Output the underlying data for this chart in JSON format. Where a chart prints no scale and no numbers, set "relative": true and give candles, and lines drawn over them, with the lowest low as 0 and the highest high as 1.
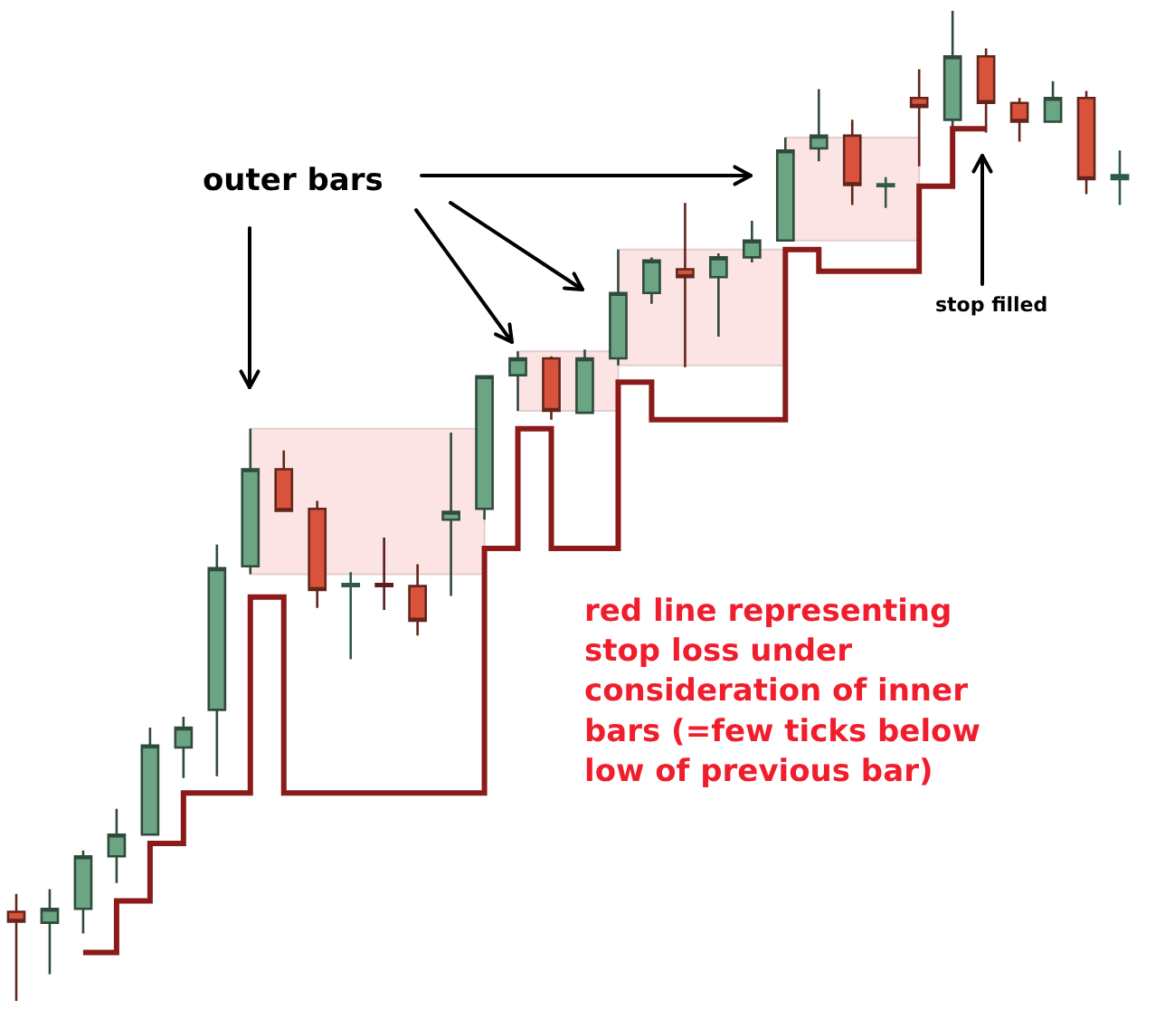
{
  "chart_data": {
    "type": "candlestick",
    "relative": true,
    "categories": [
      null,
      null,
      null,
      null,
      null,
      null,
      null,
      null,
      null,
      null,
      null,
      null,
      null,
      null,
      null,
      null,
      null,
      null,
      null,
      null,
      null,
      null,
      null,
      null,
      null,
      null,
      null,
      null,
      null,
      null,
      null,
      null,
      null,
      null
    ],
    "ohlc": [
      [
        0.09,
        0.108,
        0,
        0.08
      ],
      [
        0.079,
        0.113,
        0.027,
        0.093
      ],
      [
        0.093,
        0.152,
        0.068,
        0.146
      ],
      [
        0.146,
        0.194,
        0.119,
        0.168
      ],
      [
        0.168,
        0.276,
        0.168,
        0.258
      ],
      [
        0.256,
        0.287,
        0.225,
        0.276
      ],
      [
        0.294,
        0.461,
        0.227,
        0.437
      ],
      [
        0.439,
        0.578,
        0.431,
        0.537
      ],
      [
        0.537,
        0.556,
        0.494,
        0.495
      ],
      [
        0.497,
        0.505,
        0.397,
        0.415
      ],
      [
        0.419,
        0.433,
        0.345,
        0.421
      ],
      [
        0.421,
        0.468,
        0.395,
        0.419
      ],
      [
        0.419,
        0.441,
        0.369,
        0.384
      ],
      [
        0.486,
        0.574,
        0.409,
        0.494
      ],
      [
        0.497,
        0.632,
        0.486,
        0.631
      ],
      [
        0.632,
        0.656,
        0.596,
        0.649
      ],
      [
        0.649,
        0.651,
        0.587,
        0.596
      ],
      [
        0.594,
        0.658,
        0.594,
        0.649
      ],
      [
        0.649,
        0.759,
        0.642,
        0.715
      ],
      [
        0.715,
        0.751,
        0.704,
        0.748
      ],
      [
        0.739,
        0.806,
        0.64,
        0.731
      ],
      [
        0.731,
        0.755,
        0.671,
        0.751
      ],
      [
        0.751,
        0.788,
        0.746,
        0.768
      ],
      [
        0.768,
        0.872,
        0.768,
        0.859
      ],
      [
        0.861,
        0.921,
        0.848,
        0.874
      ],
      [
        0.874,
        0.89,
        0.804,
        0.824
      ],
      [
        0.823,
        0.832,
        0.801,
        0.825
      ],
      [
        0.912,
        0.941,
        0.843,
        0.903
      ],
      [
        0.89,
        1,
        0.883,
        0.954
      ],
      [
        0.954,
        0.962,
        0.877,
        0.907
      ],
      [
        0.907,
        0.912,
        0.868,
        0.888
      ],
      [
        0.888,
        0.929,
        0.888,
        0.912
      ],
      [
        0.912,
        0.919,
        0.815,
        0.83
      ],
      [
        0.83,
        0.859,
        0.804,
        0.834
      ]
    ],
    "colors": [
      "#d9533c",
      "#6ba583",
      "#6ba583",
      "#6ba583",
      "#6ba583",
      "#6ba583",
      "#6ba583",
      "#6ba583",
      "#d9533c",
      "#d9533c",
      "#2e5b45",
      "#5c1c1c",
      "#d9533c",
      "#6ba583",
      "#6ba583",
      "#6ba583",
      "#d9533c",
      "#6ba583",
      "#6ba583",
      "#6ba583",
      "#d9533c",
      "#6ba583",
      "#6ba583",
      "#6ba583",
      "#6ba583",
      "#d9533c",
      "#2e5b45",
      "#d9533c",
      "#6ba583",
      "#d9533c",
      "#d9533c",
      "#6ba583",
      "#d9533c",
      "#2e5b45"
    ],
    "series": [
      {
        "type": "step",
        "color": "#8b1a1a",
        "values": [
          null,
          null,
          0.049,
          0.101,
          0.159,
          0.21,
          0.21,
          0.408,
          0.21,
          0.21,
          0.21,
          0.21,
          0.21,
          0.21,
          0.457,
          0.578,
          0.457,
          0.457,
          0.625,
          0.587,
          0.587,
          0.587,
          0.587,
          0.759,
          0.737,
          0.737,
          0.737,
          0.823,
          0.881,
          0.881,
          null,
          null,
          null,
          null
        ]
      }
    ],
    "bands": [
      {
        "axis": "y",
        "from": 0.431,
        "to": 0.578,
        "color": "#fce4e4"
      },
      {
        "axis": "y",
        "from": 0.596,
        "to": 0.656,
        "color": "#fce4e4"
      },
      {
        "axis": "y",
        "from": 0.642,
        "to": 0.759,
        "color": "#fce4e4"
      },
      {
        "axis": "y",
        "from": 0.768,
        "to": 0.872,
        "color": "#fce4e4"
      }
    ],
    "annotations": [
      "outer bars",
      "stop filled",
      "red line representing stop loss under consideration of inner bars (=few ticks below low of previous bar)"
    ]
  }
}
